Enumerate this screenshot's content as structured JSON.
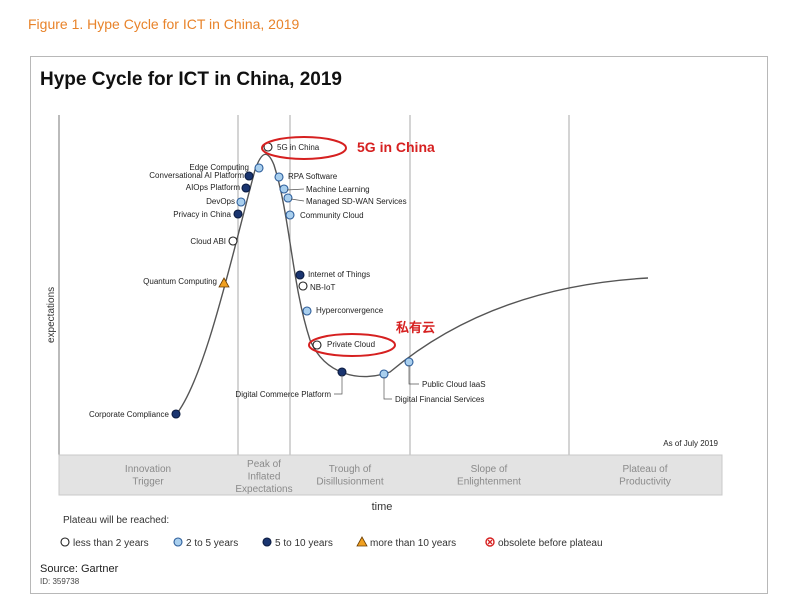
{
  "figure_caption": "Figure 1. Hype Cycle for ICT in China, 2019",
  "chart_title": "Hype Cycle for ICT in China, 2019",
  "y_axis_label": "expectations",
  "x_axis_label": "time",
  "as_of": "As of July 2019",
  "phases": [
    {
      "lines": [
        "Innovation",
        "Trigger"
      ]
    },
    {
      "lines": [
        "Peak of",
        "Inflated",
        "Expectations"
      ]
    },
    {
      "lines": [
        "Trough of",
        "Disillusionment"
      ]
    },
    {
      "lines": [
        "Slope of",
        "Enlightenment"
      ]
    },
    {
      "lines": [
        "Plateau of",
        "Productivity"
      ]
    }
  ],
  "technologies": [
    {
      "name": "5G in China",
      "plateau": "lt2"
    },
    {
      "name": "Edge Computing",
      "plateau": "2to5"
    },
    {
      "name": "Conversational AI Platform",
      "plateau": "5to10"
    },
    {
      "name": "AIOps Platform",
      "plateau": "5to10"
    },
    {
      "name": "DevOps",
      "plateau": "2to5"
    },
    {
      "name": "Privacy in China",
      "plateau": "5to10"
    },
    {
      "name": "Cloud ABI",
      "plateau": "lt2"
    },
    {
      "name": "Quantum Computing",
      "plateau": "gt10"
    },
    {
      "name": "Corporate Compliance",
      "plateau": "5to10"
    },
    {
      "name": "RPA Software",
      "plateau": "2to5"
    },
    {
      "name": "Machine Learning",
      "plateau": "2to5"
    },
    {
      "name": "Managed SD-WAN Services",
      "plateau": "2to5"
    },
    {
      "name": "Community Cloud",
      "plateau": "2to5"
    },
    {
      "name": "Internet of Things",
      "plateau": "5to10"
    },
    {
      "name": "NB-IoT",
      "plateau": "lt2"
    },
    {
      "name": "Hyperconvergence",
      "plateau": "2to5"
    },
    {
      "name": "Private Cloud",
      "plateau": "lt2"
    },
    {
      "name": "Digital Commerce Platform",
      "plateau": "5to10"
    },
    {
      "name": "Public Cloud IaaS",
      "plateau": "2to5"
    },
    {
      "name": "Digital Financial Services",
      "plateau": "2to5"
    }
  ],
  "annotations": [
    {
      "text": "5G in China",
      "color": "#d62020"
    },
    {
      "text": "私有云",
      "color": "#d62020"
    }
  ],
  "legend": {
    "title": "Plateau will be reached:",
    "items": [
      {
        "key": "lt2",
        "label": "less than 2 years",
        "color": "#ffffff"
      },
      {
        "key": "2to5",
        "label": "2 to 5 years",
        "color": "#a9cfee"
      },
      {
        "key": "5to10",
        "label": "5 to 10 years",
        "color": "#1a3570"
      },
      {
        "key": "gt10",
        "label": "more than 10 years",
        "color": "#f0a020"
      },
      {
        "key": "obsolete",
        "label": "obsolete before plateau",
        "color": "#d62020"
      }
    ]
  },
  "source": "Source: Gartner",
  "doc_id": "ID: 359738",
  "colors": {
    "caption": "#e8832a",
    "annotation": "#d62020",
    "curve": "#555555"
  }
}
